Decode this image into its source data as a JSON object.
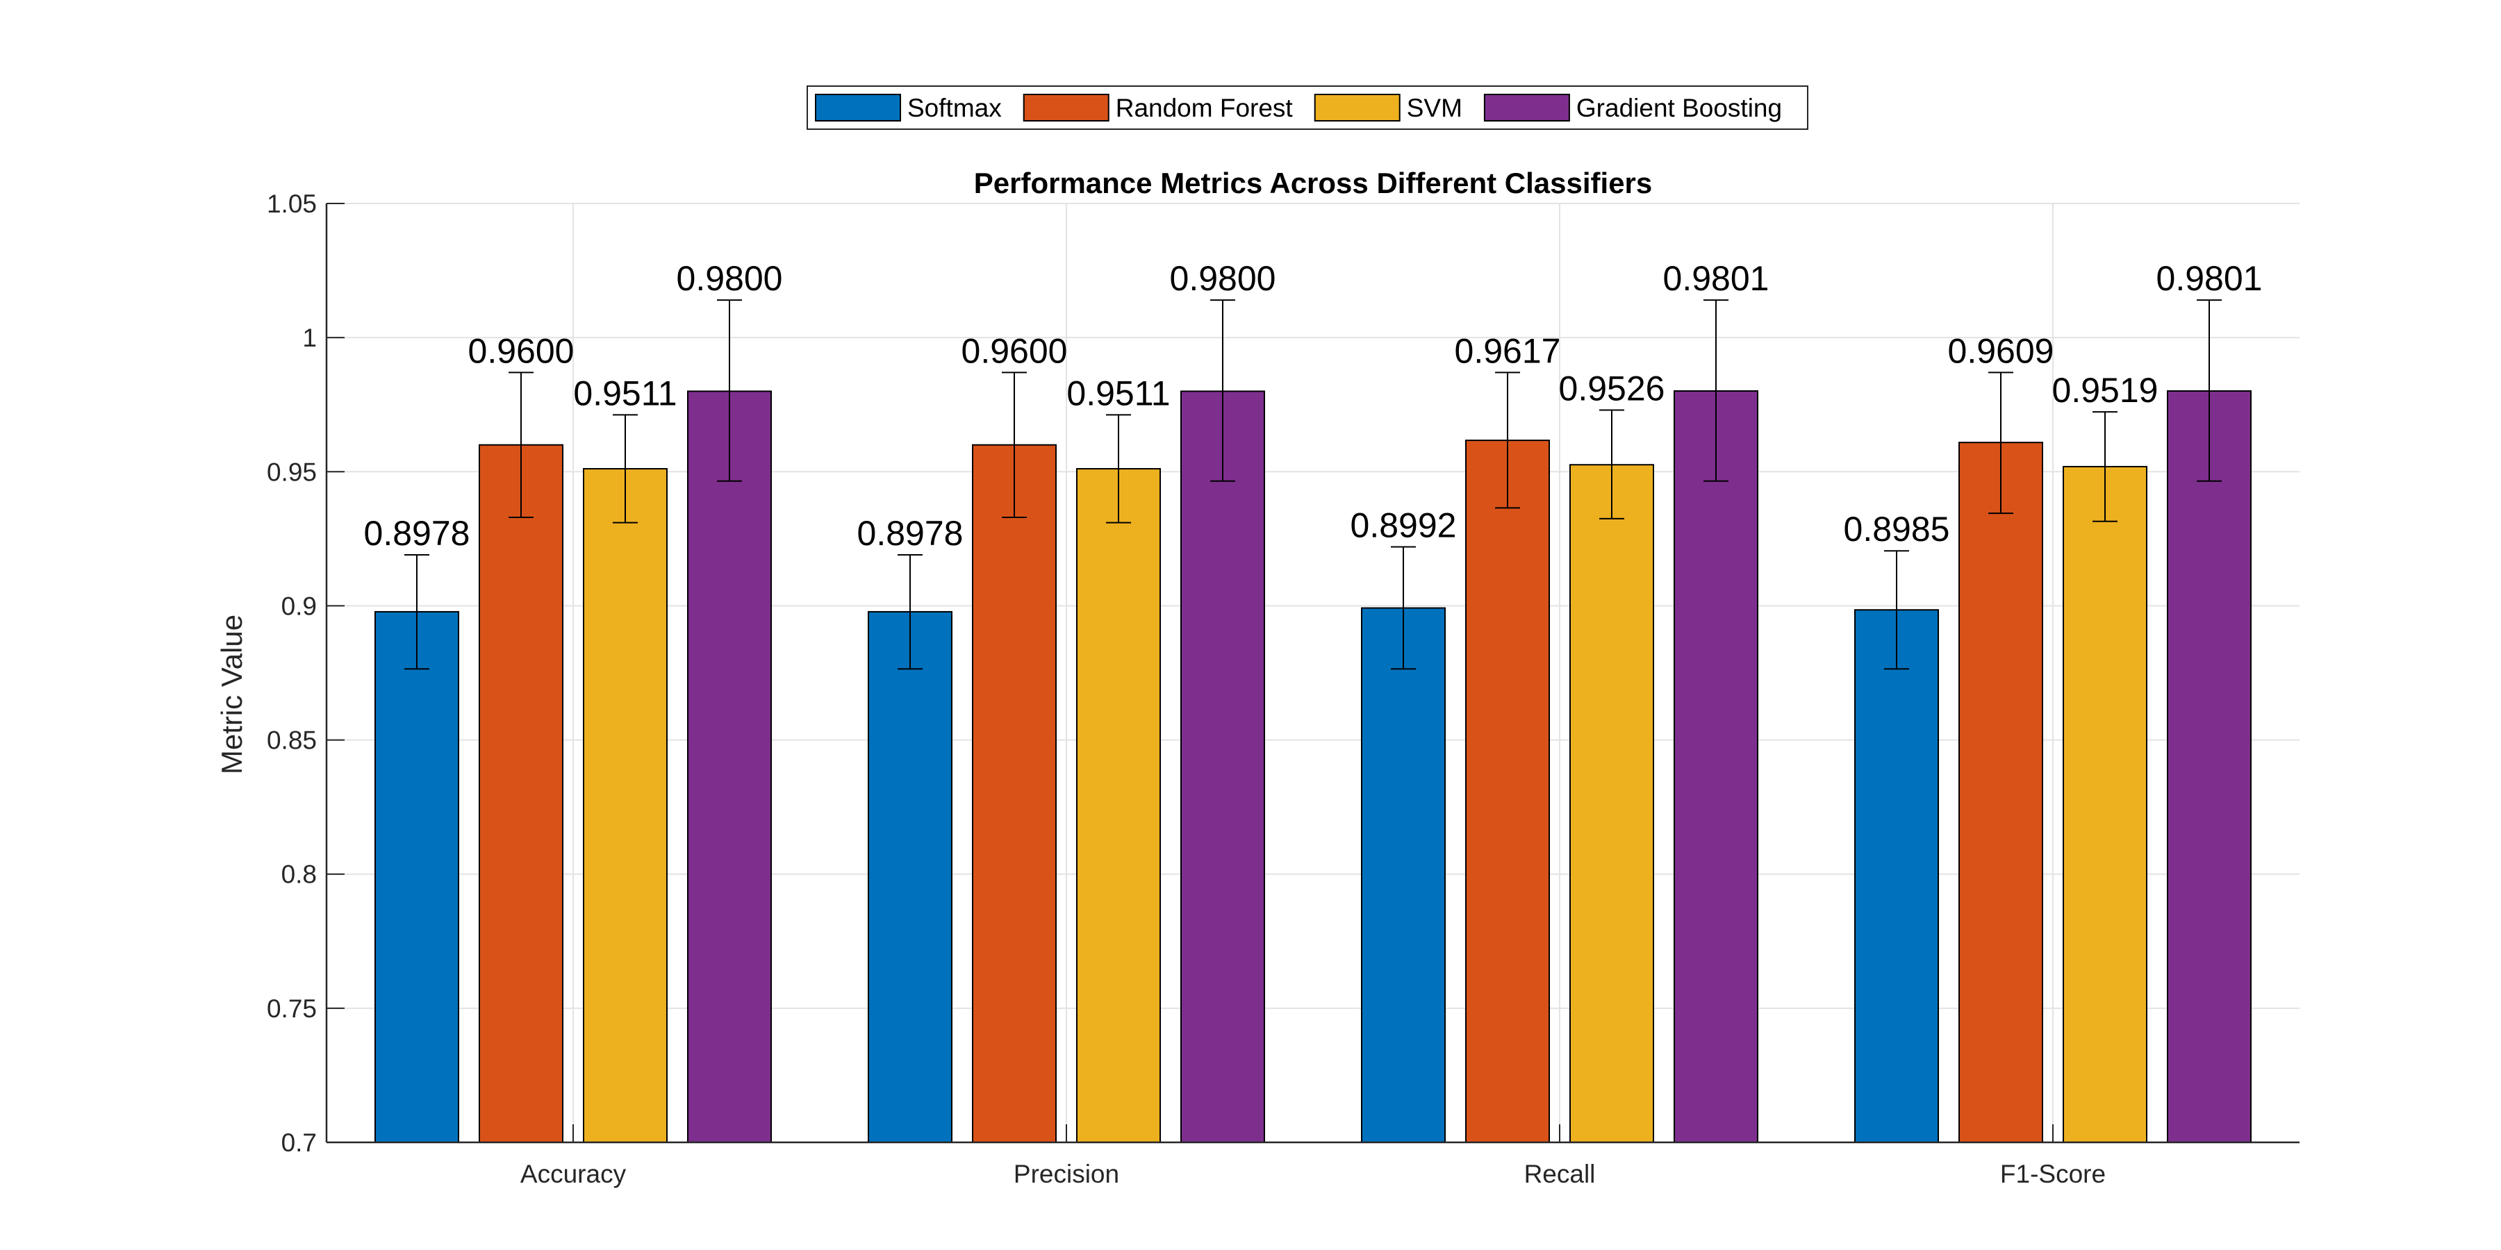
{
  "chart_data": {
    "type": "bar",
    "title": "Performance Metrics Across Different Classifiers",
    "xlabel": "",
    "ylabel": "Metric Value",
    "ylim": [
      0.7,
      1.05
    ],
    "yticks": [
      "0.7",
      "0.75",
      "0.8",
      "0.85",
      "0.9",
      "0.95",
      "1",
      "1.05"
    ],
    "categories": [
      "Accuracy",
      "Precision",
      "Recall",
      "F1-Score"
    ],
    "grid": true,
    "legend_position": "top-center",
    "series": [
      {
        "name": "Softmax",
        "color": "#0072BD",
        "values": [
          0.8978,
          0.8978,
          0.8992,
          0.8985
        ],
        "labels": [
          "0.8978",
          "0.8978",
          "0.8992",
          "0.8985"
        ],
        "err_low": [
          0.8765,
          0.8765,
          0.8765,
          0.8765
        ],
        "err_high": [
          0.919,
          0.919,
          0.922,
          0.9205
        ]
      },
      {
        "name": "Random Forest",
        "color": "#D95319",
        "values": [
          0.96,
          0.96,
          0.9617,
          0.9609
        ],
        "labels": [
          "0.9600",
          "0.9600",
          "0.9617",
          "0.9609"
        ],
        "err_low": [
          0.933,
          0.933,
          0.9365,
          0.9345
        ],
        "err_high": [
          0.987,
          0.987,
          0.987,
          0.987
        ]
      },
      {
        "name": "SVM",
        "color": "#EDB120",
        "values": [
          0.9511,
          0.9511,
          0.9526,
          0.9519
        ],
        "labels": [
          "0.9511",
          "0.9511",
          "0.9526",
          "0.9519"
        ],
        "err_low": [
          0.931,
          0.931,
          0.9325,
          0.9315
        ],
        "err_high": [
          0.9712,
          0.9712,
          0.973,
          0.9723
        ]
      },
      {
        "name": "Gradient Boosting",
        "color": "#7E2F8E",
        "values": [
          0.98,
          0.98,
          0.9801,
          0.9801
        ],
        "labels": [
          "0.9800",
          "0.9800",
          "0.9801",
          "0.9801"
        ],
        "err_low": [
          0.9465,
          0.9465,
          0.9465,
          0.9465
        ],
        "err_high": [
          1.014,
          1.014,
          1.014,
          1.014
        ]
      }
    ]
  }
}
